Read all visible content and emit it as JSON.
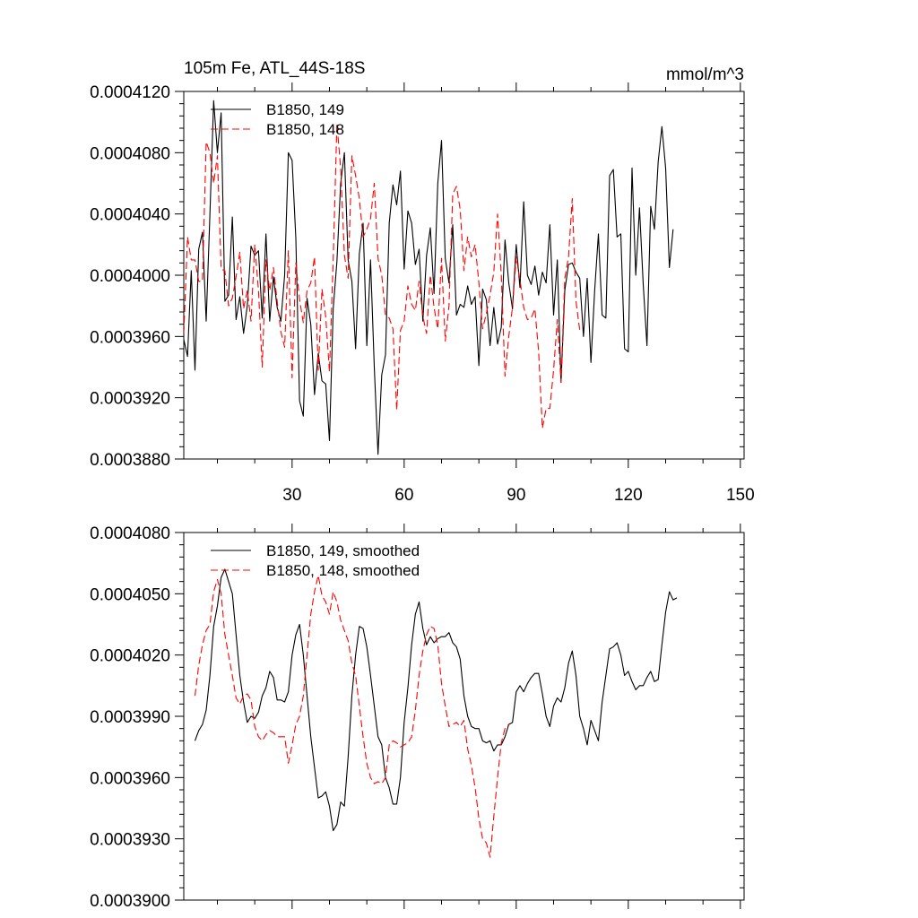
{
  "chart_data": [
    {
      "type": "line",
      "title": "105m Fe, ATL_44S-18S",
      "units_label": "mmol/m^3",
      "xlim": [
        1,
        151
      ],
      "ylim": [
        0.000388,
        0.000412
      ],
      "xticks": [
        30,
        60,
        90,
        120,
        150
      ],
      "xtick_labels": [
        "30",
        "60",
        "90",
        "120",
        "150"
      ],
      "yticks": [
        0.000388,
        0.000392,
        0.000396,
        0.0004,
        0.000404,
        0.000408,
        0.000412
      ],
      "ytick_labels": [
        "0.0003880",
        "0.0003920",
        "0.0003960",
        "0.0004000",
        "0.0004040",
        "0.0004080",
        "0.0004120"
      ],
      "legend": [
        "B1850, 149",
        "B1850, 148"
      ],
      "series": [
        {
          "name": "B1850, 149",
          "color": "#000000",
          "dash": "solid",
          "x0": 1,
          "values": [
            3.958,
            3.947,
            4.003,
            3.938,
            4.017,
            4.028,
            3.97,
            4.04,
            4.114,
            4.08,
            4.106,
            3.983,
            3.987,
            4.038,
            3.971,
            3.986,
            3.962,
            3.98,
            4.019,
            4.013,
            4.016,
            3.972,
            4.027,
            3.97,
            3.999,
            3.979,
            3.97,
            4.0,
            4.08,
            4.075,
            4.024,
            3.918,
            3.908,
            3.985,
            3.968,
            3.922,
            3.949,
            3.931,
            3.929,
            3.892,
            3.978,
            4.009,
            4.06,
            4.08,
            4.01,
            3.996,
            3.952,
            4.014,
            4.034,
            3.954,
            4.01,
            3.94,
            3.883,
            3.935,
            3.948,
            4.034,
            4.059,
            4.046,
            4.068,
            4.004,
            4.042,
            4.034,
            4.007,
            4.017,
            3.97,
            4.013,
            4.031,
            3.988,
            4.06,
            4.088,
            4.011,
            3.995,
            4.033,
            3.974,
            3.981,
            3.979,
            3.993,
            3.981,
            3.986,
            3.941,
            3.991,
            3.984,
            3.954,
            3.979,
            3.955,
            3.966,
            4.023,
            3.995,
            3.978,
            4.02,
            3.992,
            4.048,
            4.0,
            3.994,
            4.006,
            3.987,
            4.002,
            3.995,
            4.033,
            3.974,
            4.01,
            3.93,
            3.99,
            4.007,
            4.008,
            4.002,
            3.998,
            3.96,
            3.998,
            3.943,
            3.99,
            4.027,
            3.974,
            3.972,
            4.065,
            4.069,
            4.025,
            4.027,
            3.952,
            3.95,
            4.07,
            4.0,
            4.044,
            3.994,
            3.954,
            4.045,
            4.03,
            4.074,
            4.097,
            4.07,
            4.005,
            4.03
          ]
        },
        {
          "name": "B1850, 148",
          "color": "#ff0000",
          "dash": "dashed",
          "x0": 1,
          "values": [
            3.962,
            4.025,
            4.01,
            4.01,
            3.996,
            3.996,
            4.087,
            4.08,
            4.06,
            4.078,
            4.004,
            4.003,
            3.98,
            3.985,
            3.999,
            4.015,
            3.978,
            3.99,
            3.97,
            4.02,
            3.99,
            3.94,
            4.01,
            3.99,
            4.005,
            3.983,
            3.963,
            3.953,
            4.016,
            3.933,
            4.008,
            3.984,
            3.969,
            3.99,
            3.995,
            4.012,
            3.938,
            3.991,
            3.973,
            3.937,
            4.01,
            4.099,
            4.07,
            4.013,
            3.998,
            4.078,
            4.065,
            4.05,
            4.025,
            4.03,
            4.037,
            4.06,
            4.011,
            4.0,
            3.974,
            3.972,
            3.965,
            3.912,
            3.964,
            3.97,
            3.993,
            3.981,
            3.977,
            3.996,
            3.973,
            3.962,
            4.0,
            3.979,
            3.965,
            4.011,
            3.957,
            3.98,
            4.053,
            4.058,
            4.043,
            4.003,
            4.025,
            4.012,
            4.02,
            3.995,
            3.965,
            3.975,
            3.987,
            4.002,
            4.04,
            4.0,
            3.934,
            3.96,
            3.979,
            4.012,
            3.997,
            3.979,
            3.971,
            3.972,
            3.978,
            3.95,
            3.9,
            3.913,
            3.913,
            3.938,
            3.971,
            3.93,
            3.998,
            4.012,
            4.05,
            3.983,
            3.964
          ]
        }
      ]
    },
    {
      "type": "line",
      "title": "",
      "units_label": "",
      "xlim": [
        1,
        151
      ],
      "ylim": [
        0.00039,
        0.000408
      ],
      "xticks": [
        30,
        60,
        90,
        120,
        150
      ],
      "xtick_labels": [],
      "yticks": [
        0.00039,
        0.000393,
        0.000396,
        0.000399,
        0.000402,
        0.000405,
        0.000408
      ],
      "ytick_labels": [
        "0.0003900",
        "0.0003930",
        "0.0003960",
        "0.0003990",
        "0.0004020",
        "0.0004050",
        "0.0004080"
      ],
      "legend": [
        "B1850, 149, smoothed",
        "B1850, 148, smoothed"
      ],
      "series": [
        {
          "name": "B1850, 149, smoothed",
          "color": "#000000",
          "dash": "solid",
          "x0": 4,
          "values": [
            3.978,
            3.983,
            3.986,
            3.993,
            4.01,
            4.034,
            4.044,
            4.058,
            4.062,
            4.056,
            4.05,
            4.03,
            4.01,
            3.997,
            3.987,
            3.99,
            3.989,
            3.992,
            4.0,
            4.004,
            4.012,
            4.009,
            3.998,
            3.998,
            3.997,
            4.002,
            4.02,
            4.03,
            4.035,
            4.02,
            4.0,
            3.98,
            3.965,
            3.95,
            3.951,
            3.953,
            3.946,
            3.934,
            3.937,
            3.948,
            3.946,
            3.97,
            4.0,
            4.02,
            4.034,
            4.033,
            4.024,
            4.01,
            3.995,
            3.98,
            3.976,
            3.96,
            3.955,
            3.947,
            3.947,
            3.96,
            3.987,
            4.004,
            4.025,
            4.04,
            4.046,
            4.033,
            4.025,
            4.029,
            4.026,
            4.028,
            4.029,
            4.029,
            4.031,
            4.026,
            4.024,
            4.018,
            4.0,
            3.99,
            3.985,
            3.984,
            3.984,
            3.978,
            3.977,
            3.978,
            3.973,
            3.976,
            3.976,
            3.98,
            3.986,
            3.987,
            4.002,
            4.005,
            4.002,
            4.006,
            4.009,
            4.011,
            4.011,
            4.001,
            3.99,
            3.985,
            3.995,
            3.999,
            3.997,
            4.004,
            4.016,
            4.022,
            4.01,
            3.99,
            3.984,
            3.976,
            3.988,
            3.983,
            3.978,
            3.997,
            4.01,
            4.023,
            4.024,
            4.026,
            4.02,
            4.01,
            4.012,
            4.007,
            4.003,
            4.005,
            4.005,
            4.009,
            4.012,
            4.007,
            4.008,
            4.025,
            4.041,
            4.051,
            4.047,
            4.048
          ]
        },
        {
          "name": "B1850, 148, smoothed",
          "color": "#ff0000",
          "dash": "dashed",
          "x0": 4,
          "values": [
            4.0,
            4.015,
            4.025,
            4.032,
            4.035,
            4.051,
            4.057,
            4.05,
            4.03,
            4.02,
            4.01,
            3.999,
            3.996,
            4.0,
            4.001,
            3.998,
            3.985,
            3.98,
            3.978,
            3.981,
            3.983,
            3.982,
            3.98,
            3.98,
            3.98,
            3.967,
            3.976,
            3.986,
            3.99,
            4.0,
            4.02,
            4.04,
            4.051,
            4.059,
            4.049,
            4.046,
            4.04,
            4.051,
            4.046,
            4.037,
            4.032,
            4.027,
            4.016,
            4.01,
            3.995,
            3.98,
            3.967,
            3.96,
            3.957,
            3.958,
            3.957,
            3.96,
            3.976,
            3.978,
            3.977,
            3.975,
            3.976,
            3.977,
            3.98,
            3.993,
            4.01,
            4.022,
            4.03,
            4.034,
            4.033,
            4.025,
            4.006,
            3.995,
            3.985,
            3.986,
            3.987,
            3.985,
            3.988,
            3.974,
            3.966,
            3.955,
            3.94,
            3.93,
            3.928,
            3.921,
            3.941,
            3.96,
            3.977,
            3.984,
            3.986
          ]
        }
      ]
    }
  ]
}
